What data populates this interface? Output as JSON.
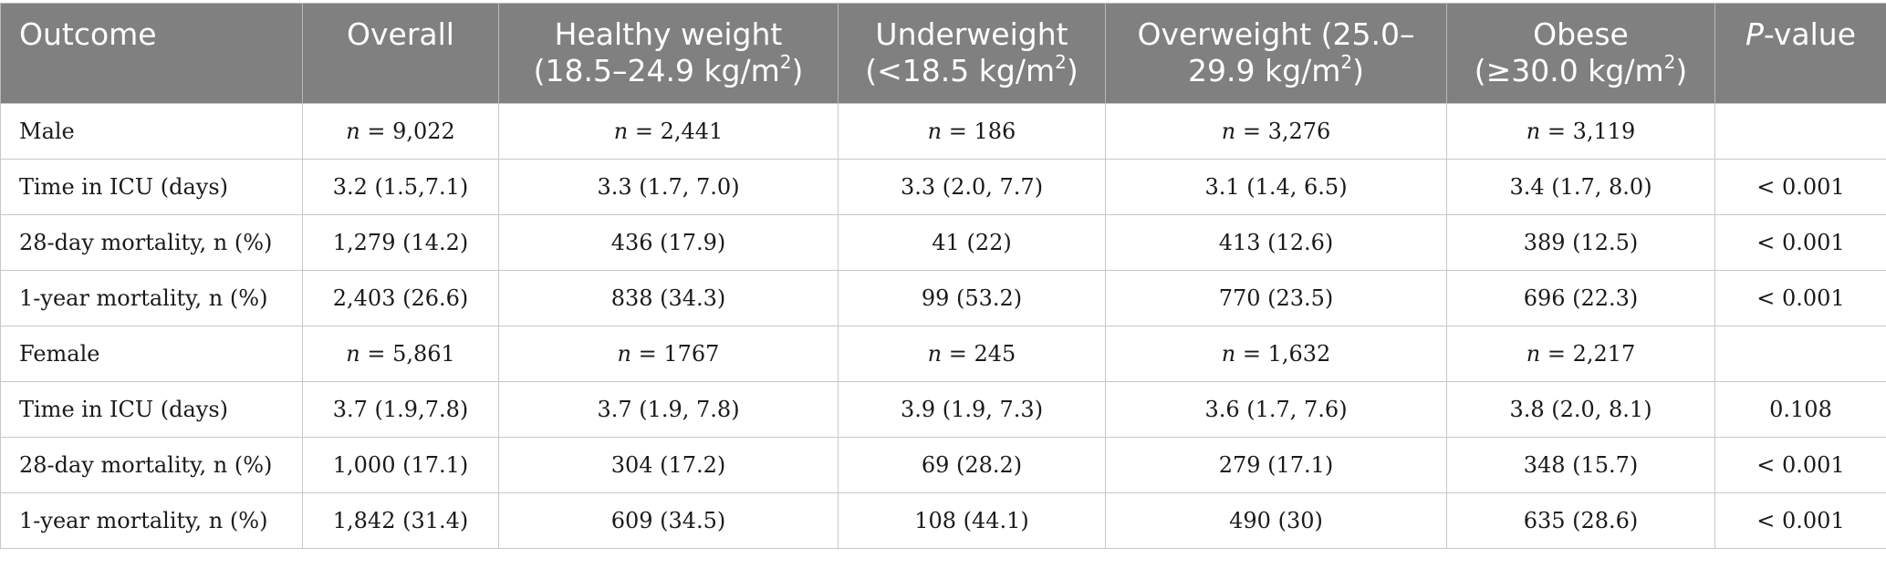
{
  "table": {
    "headers": [
      {
        "line1": "Outcome",
        "line2": "",
        "sup": ""
      },
      {
        "line1": "Overall",
        "line2": "",
        "sup": ""
      },
      {
        "line1": "Healthy weight",
        "line2": "(18.5–24.9 kg/m",
        "sup": "2",
        "tail": ")"
      },
      {
        "line1": "Underweight",
        "line2": "(<18.5 kg/m",
        "sup": "2",
        "tail": ")"
      },
      {
        "line1": "Overweight (25.0–",
        "line2": "29.9 kg/m",
        "sup": "2",
        "tail": ")"
      },
      {
        "line1": "Obese",
        "line2": "(≥30.0 kg/m",
        "sup": "2",
        "tail": ")"
      },
      {
        "italic": "P",
        "rest": "-value"
      }
    ],
    "rows": [
      {
        "label": "Male",
        "n_row": true,
        "cells": [
          "9,022",
          "2,441",
          "186",
          "3,276",
          "3,119",
          ""
        ]
      },
      {
        "label": "Time in ICU (days)",
        "n_row": false,
        "cells": [
          "3.2 (1.5,7.1)",
          "3.3 (1.7, 7.0)",
          "3.3 (2.0, 7.7)",
          "3.1 (1.4, 6.5)",
          "3.4 (1.7, 8.0)",
          "< 0.001"
        ]
      },
      {
        "label": "28-day mortality, n (%)",
        "n_row": false,
        "cells": [
          "1,279 (14.2)",
          "436 (17.9)",
          "41 (22)",
          "413 (12.6)",
          "389 (12.5)",
          "< 0.001"
        ]
      },
      {
        "label": "1-year mortality, n (%)",
        "n_row": false,
        "cells": [
          "2,403 (26.6)",
          "838 (34.3)",
          "99 (53.2)",
          "770 (23.5)",
          "696 (22.3)",
          "< 0.001"
        ]
      },
      {
        "label": "Female",
        "n_row": true,
        "cells": [
          "5,861",
          "1767",
          "245",
          "1,632",
          "2,217",
          ""
        ]
      },
      {
        "label": "Time in ICU (days)",
        "n_row": false,
        "cells": [
          "3.7 (1.9,7.8)",
          "3.7 (1.9, 7.8)",
          "3.9 (1.9, 7.3)",
          "3.6 (1.7, 7.6)",
          "3.8 (2.0, 8.1)",
          "0.108"
        ]
      },
      {
        "label": "28-day mortality, n (%)",
        "n_row": false,
        "cells": [
          "1,000 (17.1)",
          "304 (17.2)",
          "69 (28.2)",
          "279 (17.1)",
          "348 (15.7)",
          "< 0.001"
        ]
      },
      {
        "label": "1-year mortality, n (%)",
        "n_row": false,
        "cells": [
          "1,842 (31.4)",
          "609 (34.5)",
          "108 (44.1)",
          "490 (30)",
          "635 (28.6)",
          "< 0.001"
        ]
      }
    ],
    "n_prefix": "n",
    "n_equals": " = "
  }
}
